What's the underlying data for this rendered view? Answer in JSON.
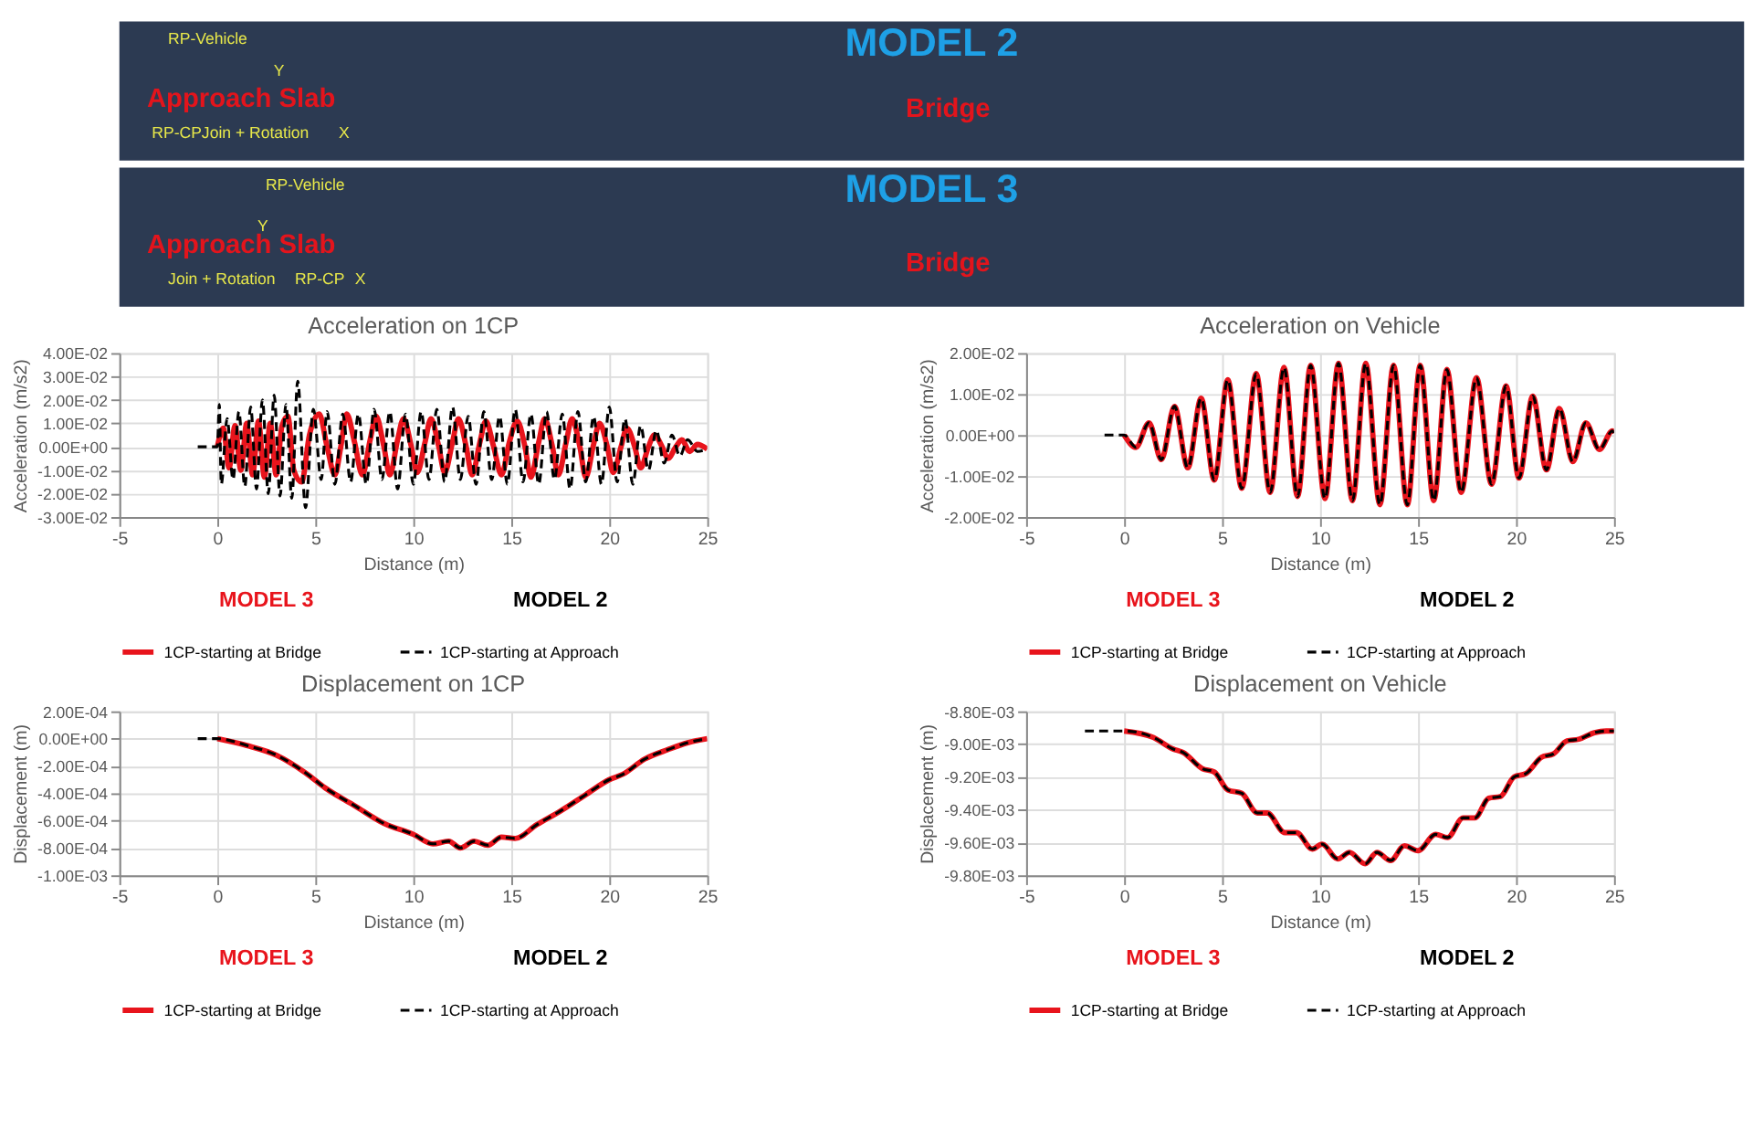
{
  "chart_data": [
    {
      "type": "other",
      "title": "MODEL 2",
      "annotations": [
        "RP-Vehicle",
        "Approach Slab",
        "Y",
        "RP-CPJoin + Rotation",
        "X",
        "Bridge"
      ]
    },
    {
      "type": "other",
      "title": "MODEL 3",
      "annotations": [
        "RP-Vehicle",
        "Y",
        "Approach Slab",
        "Join + Rotation",
        "RP-CP",
        "X",
        "Bridge"
      ]
    },
    {
      "type": "line",
      "title": "Acceleration on 1CP",
      "xlabel": "Distance (m)",
      "ylabel": "Acceleration (m/s2)",
      "annotations": [
        "MODEL 3",
        "MODEL 2"
      ],
      "xlim": [
        -5,
        25
      ],
      "xticks": [
        -5,
        0,
        5,
        10,
        15,
        20,
        25
      ],
      "ylim": [
        -0.03,
        0.04
      ],
      "yticks": [
        {
          "value": -0.03,
          "label": "-3.00E-02"
        },
        {
          "value": -0.02,
          "label": "-2.00E-02"
        },
        {
          "value": -0.01,
          "label": "-1.00E-02"
        },
        {
          "value": 0,
          "label": "0.00E+00"
        },
        {
          "value": 0.01,
          "label": "1.00E-02"
        },
        {
          "value": 0.02,
          "label": "2.00E-02"
        },
        {
          "value": 0.03,
          "label": "3.00E-02"
        },
        {
          "value": 0.04,
          "label": "4.00E-02"
        }
      ],
      "grid": true,
      "legend": "bottom",
      "series": [
        {
          "name": "1CP-starting at Bridge",
          "color": "#e8141c",
          "line_style": "solid",
          "x": [
            0,
            0.3,
            0.6,
            0.9,
            1.2,
            1.5,
            1.8,
            2.1,
            2.4,
            2.7,
            3.0,
            3.3,
            3.6,
            3.9,
            4.3,
            4.7,
            5.2,
            5.6,
            6.0,
            6.3,
            6.6,
            7.0,
            7.4,
            7.8,
            8.1,
            8.5,
            8.8,
            9.2,
            9.5,
            9.9,
            10.2,
            10.6,
            10.9,
            11.3,
            11.6,
            12.0,
            12.3,
            12.7,
            13.0,
            13.4,
            13.7,
            14.1,
            14.5,
            14.9,
            15.3,
            15.7,
            16.0,
            16.4,
            16.7,
            17.1,
            17.4,
            17.8,
            18.1,
            18.5,
            18.8,
            19.2,
            19.5,
            19.9,
            20.2,
            20.6,
            20.9,
            21.3,
            21.6,
            22.0,
            22.3,
            22.7,
            23.0,
            23.4,
            23.7,
            24.1,
            24.5,
            25
          ],
          "values": [
            0,
            0.008,
            -0.009,
            0.009,
            -0.01,
            0.01,
            -0.012,
            0.011,
            -0.013,
            0.01,
            -0.012,
            0.009,
            0.013,
            -0.01,
            -0.015,
            0.005,
            0.014,
            0.0,
            -0.012,
            0.0,
            0.014,
            0.002,
            -0.012,
            0.003,
            0.013,
            0.0,
            -0.012,
            0.003,
            0.012,
            0.0,
            -0.011,
            0.002,
            0.012,
            0.0,
            -0.011,
            0.002,
            0.012,
            0.0,
            -0.012,
            0.002,
            0.011,
            0.0,
            -0.012,
            0.002,
            0.011,
            0.0,
            -0.013,
            0.002,
            0.012,
            0.0,
            -0.012,
            0.002,
            0.012,
            0.0,
            -0.013,
            0.001,
            0.01,
            0.0,
            -0.011,
            0.0,
            0.008,
            0.0,
            -0.009,
            0.0,
            0.005,
            0.0,
            -0.005,
            0.0,
            0.003,
            -0.002,
            0.001,
            -0.001
          ]
        },
        {
          "name": "1CP-starting at Approach",
          "color": "#000000",
          "line_style": "dashed",
          "x": [
            -1,
            0,
            0.1,
            0.2,
            0.5,
            0.8,
            1.1,
            1.4,
            1.7,
            2.0,
            2.3,
            2.6,
            2.9,
            3.2,
            3.5,
            3.8,
            4.1,
            4.5,
            4.9,
            5.3,
            5.6,
            6.0,
            6.4,
            6.8,
            7.2,
            7.6,
            8.0,
            8.4,
            8.8,
            9.2,
            9.6,
            10.0,
            10.4,
            10.8,
            11.2,
            11.6,
            12.0,
            12.4,
            12.8,
            13.2,
            13.6,
            14.0,
            14.4,
            14.8,
            15.2,
            15.6,
            16.0,
            16.4,
            16.8,
            17.2,
            17.6,
            18.0,
            18.4,
            18.8,
            19.2,
            19.6,
            20.0,
            20.4,
            20.8,
            21.2,
            21.6,
            22.0,
            22.4,
            22.8,
            23.2,
            23.6,
            24.0,
            24.5,
            25
          ],
          "values": [
            0,
            0,
            0.018,
            -0.016,
            0.012,
            -0.014,
            0.015,
            -0.017,
            0.017,
            -0.018,
            0.02,
            -0.02,
            0.022,
            -0.021,
            0.018,
            -0.022,
            0.028,
            -0.026,
            0.016,
            -0.014,
            0.015,
            -0.016,
            0.014,
            -0.015,
            0.014,
            -0.016,
            0.016,
            -0.014,
            0.015,
            -0.018,
            0.014,
            -0.016,
            0.015,
            -0.014,
            0.016,
            -0.015,
            0.017,
            -0.014,
            0.013,
            -0.016,
            0.015,
            -0.014,
            0.013,
            -0.016,
            0.016,
            -0.015,
            0.014,
            -0.016,
            0.015,
            -0.014,
            0.014,
            -0.018,
            0.015,
            -0.015,
            0.013,
            -0.016,
            0.017,
            -0.015,
            0.012,
            -0.016,
            0.009,
            -0.01,
            0.007,
            -0.007,
            0.005,
            -0.004,
            0.003,
            -0.002,
            -0.001
          ]
        }
      ]
    },
    {
      "type": "line",
      "title": "Acceleration on Vehicle",
      "xlabel": "Distance (m)",
      "ylabel": "Acceleration (m/s2)",
      "annotations": [
        "MODEL 3",
        "MODEL 2"
      ],
      "xlim": [
        -5,
        25
      ],
      "xticks": [
        -5,
        0,
        5,
        10,
        15,
        20,
        25
      ],
      "ylim": [
        -0.02,
        0.02
      ],
      "yticks": [
        {
          "value": -0.02,
          "label": "-2.00E-02"
        },
        {
          "value": -0.01,
          "label": "-1.00E-02"
        },
        {
          "value": 0,
          "label": "0.00E+00"
        },
        {
          "value": 0.01,
          "label": "1.00E-02"
        },
        {
          "value": 0.02,
          "label": "2.00E-02"
        }
      ],
      "grid": true,
      "legend": "bottom",
      "series": [
        {
          "name": "1CP-starting at Bridge",
          "color": "#e8141c",
          "line_style": "solid",
          "x": [
            0,
            0.6,
            1.27,
            1.9,
            2.57,
            3.25,
            3.93,
            4.6,
            5.29,
            6.0,
            6.74,
            7.45,
            8.16,
            8.85,
            9.52,
            10.25,
            10.94,
            11.65,
            12.33,
            13.05,
            13.75,
            14.45,
            15.11,
            15.8,
            16.47,
            17.2,
            17.98,
            18.75,
            19.49,
            20.15,
            20.85,
            21.55,
            22.21,
            22.9,
            23.56,
            24.25,
            24.92,
            25
          ],
          "values": [
            0,
            -0.003,
            0.003,
            -0.006,
            0.007,
            -0.008,
            0.009,
            -0.011,
            0.0135,
            -0.013,
            0.015,
            -0.014,
            0.0165,
            -0.015,
            0.017,
            -0.0155,
            0.0175,
            -0.016,
            0.0175,
            -0.017,
            0.017,
            -0.017,
            0.017,
            -0.016,
            0.016,
            -0.014,
            0.014,
            -0.012,
            0.012,
            -0.0105,
            0.0095,
            -0.0085,
            0.0065,
            -0.0065,
            0.003,
            -0.0035,
            0.001,
            0.0005
          ]
        },
        {
          "name": "1CP-starting at Approach",
          "color": "#000000",
          "line_style": "dashed",
          "x": [
            -1,
            0,
            0.6,
            1.27,
            1.9,
            2.57,
            3.25,
            3.93,
            4.6,
            5.29,
            6.0,
            6.74,
            7.45,
            8.16,
            8.85,
            9.52,
            10.25,
            10.94,
            11.65,
            12.33,
            13.05,
            13.75,
            14.45,
            15.11,
            15.8,
            16.47,
            17.2,
            17.98,
            18.75,
            19.49,
            20.15,
            20.85,
            21.55,
            22.21,
            22.9,
            23.56,
            24.25,
            24.92,
            25
          ],
          "values": [
            0,
            0,
            -0.003,
            0.003,
            -0.006,
            0.007,
            -0.008,
            0.009,
            -0.011,
            0.0135,
            -0.013,
            0.015,
            -0.014,
            0.0165,
            -0.015,
            0.017,
            -0.0155,
            0.0175,
            -0.016,
            0.0175,
            -0.017,
            0.017,
            -0.017,
            0.017,
            -0.016,
            0.016,
            -0.014,
            0.014,
            -0.012,
            0.012,
            -0.0105,
            0.0095,
            -0.0085,
            0.0065,
            -0.0065,
            0.003,
            -0.0035,
            0.001,
            0.0005
          ]
        }
      ]
    },
    {
      "type": "line",
      "title": "Displacement on 1CP",
      "xlabel": "Distance (m)",
      "ylabel": "Displacement (m)",
      "annotations": [
        "MODEL 3",
        "MODEL 2"
      ],
      "xlim": [
        -5,
        25
      ],
      "xticks": [
        -5,
        0,
        5,
        10,
        15,
        20,
        25
      ],
      "ylim": [
        -0.001,
        0.0002
      ],
      "yticks": [
        {
          "value": -0.001,
          "label": "-1.00E-03"
        },
        {
          "value": -0.0008,
          "label": "-8.00E-04"
        },
        {
          "value": -0.0006,
          "label": "-6.00E-04"
        },
        {
          "value": -0.0004,
          "label": "-4.00E-04"
        },
        {
          "value": -0.0002,
          "label": "-2.00E-04"
        },
        {
          "value": 0,
          "label": "0.00E+00"
        },
        {
          "value": 0.0002,
          "label": "2.00E-04"
        }
      ],
      "grid": true,
      "legend": "bottom",
      "series": [
        {
          "name": "1CP-starting at Bridge",
          "color": "#e8141c",
          "line_style": "solid",
          "x": [
            0,
            1.5,
            3,
            4.5,
            5.5,
            7,
            8.5,
            10,
            11,
            11.8,
            12.4,
            13.1,
            13.8,
            14.5,
            15.2,
            16.3,
            17.5,
            18.8,
            20,
            20.7,
            21.8,
            23,
            24,
            25
          ],
          "values": [
            0,
            -5e-05,
            -0.00012,
            -0.00025,
            -0.00036,
            -0.00049,
            -0.00062,
            -0.0007,
            -0.00077,
            -0.00075,
            -0.0008,
            -0.00075,
            -0.00078,
            -0.00072,
            -0.00073,
            -0.00063,
            -0.00053,
            -0.00041,
            -0.0003,
            -0.00026,
            -0.00015,
            -8e-05,
            -3e-05,
            0
          ]
        },
        {
          "name": "1CP-starting at Approach",
          "color": "#000000",
          "line_style": "dashed",
          "x": [
            -1,
            0,
            1.5,
            3,
            4.5,
            5.5,
            7,
            8.5,
            10,
            11,
            11.8,
            12.4,
            13.1,
            13.8,
            14.5,
            15.2,
            16.3,
            17.5,
            18.8,
            20,
            20.7,
            21.8,
            23,
            24,
            25
          ],
          "values": [
            0,
            0,
            -5e-05,
            -0.00012,
            -0.00025,
            -0.00036,
            -0.00049,
            -0.00062,
            -0.0007,
            -0.00077,
            -0.00075,
            -0.0008,
            -0.00075,
            -0.00078,
            -0.00072,
            -0.00073,
            -0.00063,
            -0.00053,
            -0.00041,
            -0.0003,
            -0.00026,
            -0.00015,
            -8e-05,
            -3e-05,
            0
          ]
        }
      ]
    },
    {
      "type": "line",
      "title": "Displacement on Vehicle",
      "xlabel": "Distance (m)",
      "ylabel": "Displacement (m)",
      "annotations": [
        "MODEL 3",
        "MODEL 2"
      ],
      "xlim": [
        -5,
        25
      ],
      "xticks": [
        -5,
        0,
        5,
        10,
        15,
        20,
        25
      ],
      "ylim": [
        -0.0098,
        -0.0088
      ],
      "yticks": [
        {
          "value": -0.0098,
          "label": "-9.80E-03"
        },
        {
          "value": -0.0096,
          "label": "-9.60E-03"
        },
        {
          "value": -0.0094,
          "label": "-9.40E-03"
        },
        {
          "value": -0.0092,
          "label": "-9.20E-03"
        },
        {
          "value": -0.009,
          "label": "-9.00E-03"
        },
        {
          "value": -0.0088,
          "label": "-8.80E-03"
        }
      ],
      "grid": true,
      "legend": "bottom",
      "series": [
        {
          "name": "1CP-starting at Bridge",
          "color": "#e8141c",
          "line_style": "solid",
          "x": [
            0,
            1.5,
            2.5,
            3,
            4,
            4.6,
            5.3,
            6,
            6.8,
            7.3,
            8.2,
            8.8,
            9.6,
            10.1,
            10.9,
            11.5,
            12.3,
            12.9,
            13.6,
            14.3,
            15,
            15.9,
            16.5,
            17.3,
            17.9,
            18.6,
            19.2,
            19.9,
            20.5,
            21.3,
            21.9,
            22.6,
            23.2,
            24,
            24.6,
            25
          ],
          "values": [
            -0.00892,
            -0.00896,
            -0.00903,
            -0.00905,
            -0.00915,
            -0.00917,
            -0.00928,
            -0.0093,
            -0.00942,
            -0.00942,
            -0.00954,
            -0.00954,
            -0.00964,
            -0.00961,
            -0.0097,
            -0.00966,
            -0.00973,
            -0.00966,
            -0.00971,
            -0.00962,
            -0.00965,
            -0.00955,
            -0.00957,
            -0.00945,
            -0.00945,
            -0.00933,
            -0.00932,
            -0.0092,
            -0.00918,
            -0.00908,
            -0.00906,
            -0.00898,
            -0.00897,
            -0.00893,
            -0.00892,
            -0.00892
          ]
        },
        {
          "name": "1CP-starting at Approach",
          "color": "#000000",
          "line_style": "dashed",
          "x": [
            -2,
            0,
            1.5,
            2.5,
            3,
            4,
            4.6,
            5.3,
            6,
            6.8,
            7.3,
            8.2,
            8.8,
            9.6,
            10.1,
            10.9,
            11.5,
            12.3,
            12.9,
            13.6,
            14.3,
            15,
            15.9,
            16.5,
            17.3,
            17.9,
            18.6,
            19.2,
            19.9,
            20.5,
            21.3,
            21.9,
            22.6,
            23.2,
            24,
            24.6,
            25
          ],
          "values": [
            -0.00892,
            -0.00892,
            -0.00896,
            -0.00903,
            -0.00905,
            -0.00915,
            -0.00917,
            -0.00928,
            -0.0093,
            -0.00942,
            -0.00942,
            -0.00954,
            -0.00954,
            -0.00964,
            -0.00961,
            -0.0097,
            -0.00966,
            -0.00973,
            -0.00966,
            -0.00971,
            -0.00962,
            -0.00965,
            -0.00955,
            -0.00957,
            -0.00945,
            -0.00945,
            -0.00933,
            -0.00932,
            -0.0092,
            -0.00918,
            -0.00908,
            -0.00906,
            -0.00898,
            -0.00897,
            -0.00893,
            -0.00892,
            -0.00892
          ]
        }
      ]
    }
  ]
}
